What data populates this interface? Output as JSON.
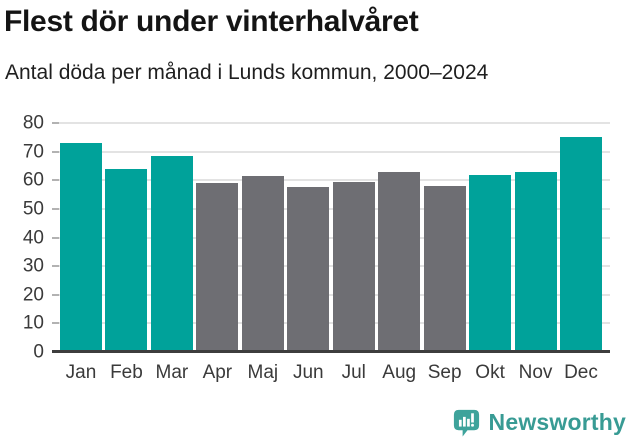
{
  "header": {
    "title": "Flest dör under vinterhalvåret",
    "subtitle": "Antal döda per månad i Lunds kommun, 2000–2024"
  },
  "chart_data": {
    "type": "bar",
    "title": "Flest dör under vinterhalvåret",
    "subtitle": "Antal döda per månad i Lunds kommun, 2000–2024",
    "categories": [
      "Jan",
      "Feb",
      "Mar",
      "Apr",
      "Maj",
      "Jun",
      "Jul",
      "Aug",
      "Sep",
      "Okt",
      "Nov",
      "Dec"
    ],
    "values": [
      73,
      64,
      68.5,
      59,
      61.5,
      57.5,
      59.5,
      63,
      58,
      62,
      63,
      75
    ],
    "bar_groups": [
      "winter",
      "winter",
      "winter",
      "summer",
      "summer",
      "summer",
      "summer",
      "summer",
      "summer",
      "winter",
      "winter",
      "winter"
    ],
    "palette": {
      "winter": "#00a29a",
      "summer": "#6e6e73"
    },
    "xlabel": "",
    "ylabel": "",
    "ylim": [
      0,
      80
    ],
    "yticks": [
      0,
      10,
      20,
      30,
      40,
      50,
      60,
      70,
      80
    ],
    "grid": true,
    "legend": "none",
    "grid_color": "#e3e3e3",
    "axis_color": "#3d3d3d"
  },
  "footer": {
    "brand": "Newsworthy",
    "logo_icon": "bar-chart-speech-bubble-icon",
    "brand_color": "#389b94",
    "logo_color": "#3ea39b"
  }
}
